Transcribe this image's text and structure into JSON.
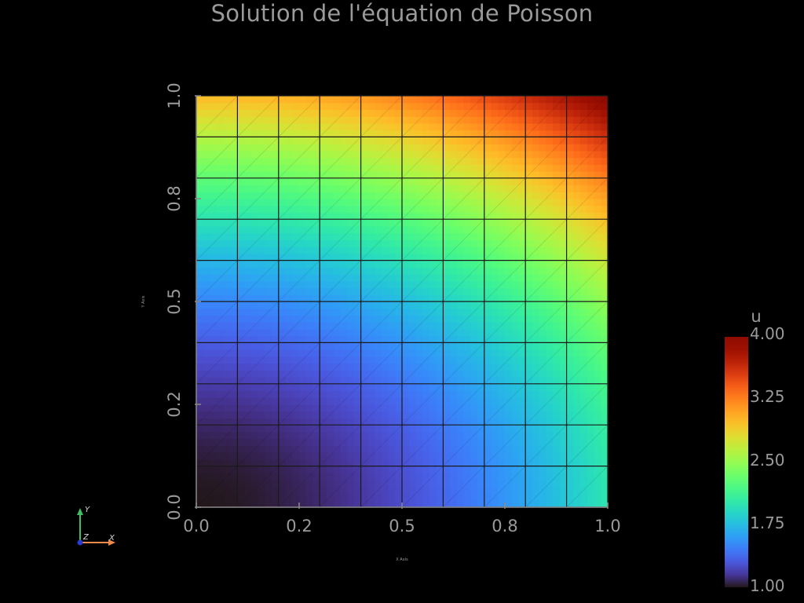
{
  "chart_data": {
    "type": "heatmap",
    "title": "Solution de l'équation de Poisson",
    "xlabel": "X Axis",
    "ylabel": "Y Axis",
    "xlim": [
      0.0,
      1.0
    ],
    "ylim": [
      0.0,
      1.0
    ],
    "x_ticks": [
      "0.0",
      "0.2",
      "0.5",
      "0.8",
      "1.0"
    ],
    "y_ticks": [
      "0.0",
      "0.2",
      "0.5",
      "0.8",
      "1.0"
    ],
    "mesh": {
      "nx": 10,
      "ny": 10,
      "cells": "triangles"
    },
    "field": {
      "name": "u",
      "expression_evaluated": "1 + x^2 + 2*y^2",
      "range": [
        1.0,
        4.0
      ]
    },
    "colorbar": {
      "title": "u",
      "ticks": [
        "4.00",
        "3.25",
        "2.50",
        "1.75",
        "1.00"
      ],
      "colormap": "turbo"
    },
    "grid_color": "#1a1a1a",
    "text_color": "#9a9a9a"
  },
  "orientation_widget": {
    "y_label": "Y",
    "x_label": "X",
    "z_label": "Z",
    "y_color": "#3fbf5f",
    "x_color": "#f08a4b",
    "z_color": "#2b3bd6"
  }
}
